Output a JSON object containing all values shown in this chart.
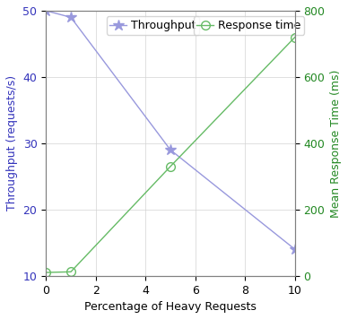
{
  "x": [
    0,
    1,
    5,
    10
  ],
  "throughput": [
    50,
    49,
    29,
    14
  ],
  "response_time": [
    10,
    12,
    330,
    720
  ],
  "throughput_color": "#9999dd",
  "response_time_color": "#66bb66",
  "xlabel": "Percentage of Heavy Requests",
  "ylabel_left": "Throughput (requests/s)",
  "ylabel_right": "Mean Response Time (ms)",
  "xlim": [
    0,
    10
  ],
  "ylim_left": [
    10,
    50
  ],
  "ylim_right": [
    0,
    800
  ],
  "xticks": [
    0,
    2,
    4,
    6,
    8,
    10
  ],
  "yticks_left": [
    10,
    20,
    30,
    40,
    50
  ],
  "yticks_right": [
    0,
    200,
    400,
    600,
    800
  ],
  "legend_throughput": "Throughput",
  "legend_response": "Response time",
  "axis_left_color": "#3333bb",
  "axis_right_color": "#228822",
  "label_fontsize": 9,
  "tick_fontsize": 9
}
